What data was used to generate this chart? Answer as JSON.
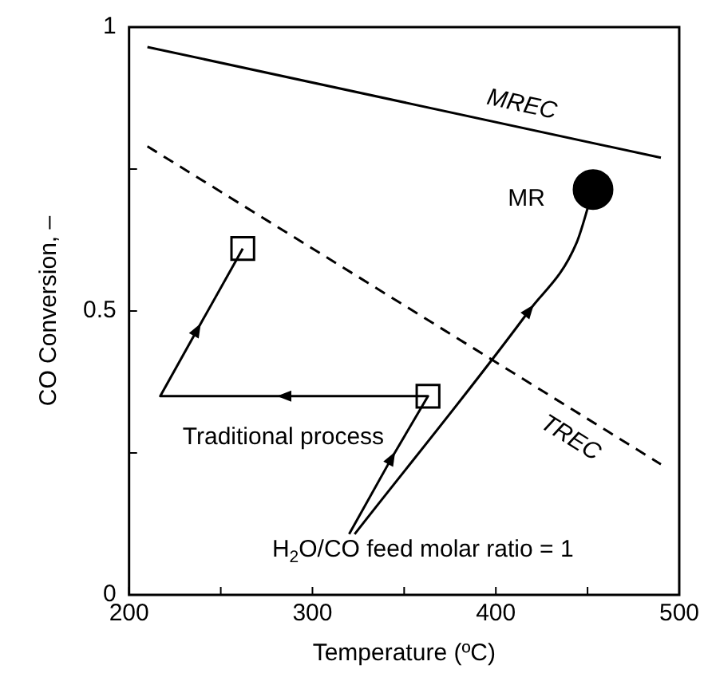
{
  "chart_data": {
    "type": "line",
    "xlabel": "Temperature (ºC)",
    "ylabel": "CO Conversion, –",
    "xlim": [
      200,
      500
    ],
    "xticks": [
      200,
      {
        "value": 250,
        "label": null
      },
      300,
      {
        "value": 350,
        "label": null
      },
      400,
      {
        "value": 450,
        "label": null
      },
      500
    ],
    "ylim": [
      0,
      1
    ],
    "yticks": [
      0,
      {
        "value": 0.25,
        "label": null
      },
      0.5,
      {
        "value": 0.75,
        "label": null
      },
      1
    ],
    "grid": false,
    "legend": false,
    "marker": "none",
    "series": [
      {
        "name": "MREC",
        "color": "#000000",
        "x": [
          210,
          490
        ],
        "values": [
          0.965,
          0.77
        ],
        "line_style": "solid"
      },
      {
        "name": "TREC",
        "color": "#000000",
        "x": [
          210,
          490
        ],
        "values": [
          0.79,
          0.23
        ],
        "line_style": "dashed"
      },
      {
        "name": "Traditional process",
        "color": "#000000",
        "x": [
          320,
          343,
          363,
          285,
          217,
          237,
          262
        ],
        "values": [
          0.107,
          0.24,
          0.35,
          0.35,
          0.35,
          0.466,
          0.61
        ],
        "line_style": "solid"
      },
      {
        "name": "MR",
        "color": "#000000",
        "x": [
          323,
          418,
          444,
          453
        ],
        "values": [
          0.107,
          0.5,
          0.62,
          0.714
        ],
        "line_style": "solid"
      },
      {
        "type": "scatter",
        "color": "#000000",
        "x": [
          363,
          262
        ],
        "values": [
          0.35,
          0.61
        ],
        "marker": "square"
      },
      {
        "type": "scatter",
        "color": "#000000",
        "x": [
          453
        ],
        "values": [
          0.714
        ],
        "marker": "circle"
      }
    ],
    "annotations": [
      "H$_{2}$O/CO feed molar ratio = 1"
    ]
  }
}
